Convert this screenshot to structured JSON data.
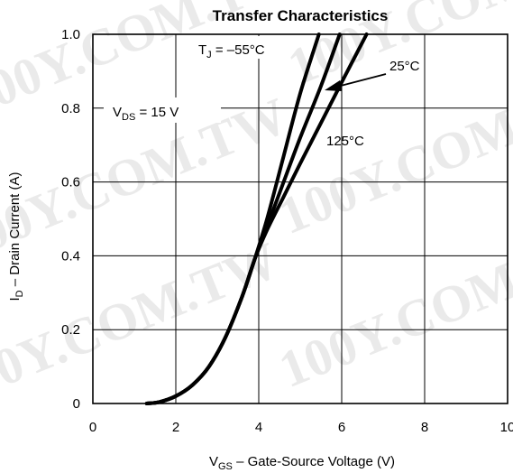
{
  "chart_data": {
    "type": "line",
    "title": "Transfer Characteristics",
    "xlabel": {
      "main": "V",
      "sub": "GS",
      "rest": " – Gate-Source Voltage (V)"
    },
    "ylabel": {
      "main": "I",
      "sub": "D",
      "rest": " – Drain Current (A)"
    },
    "xlim": [
      0,
      10
    ],
    "ylim": [
      0,
      1.0
    ],
    "x_ticks": [
      "0",
      "2",
      "4",
      "6",
      "8",
      "10"
    ],
    "y_ticks": [
      "0",
      "0.2",
      "0.4",
      "0.6",
      "0.8",
      "1.0"
    ],
    "grid": true,
    "annotations": {
      "vds": {
        "main": "V",
        "sub": "DS",
        "rest": "  = 15 V"
      },
      "tj": {
        "main": "T",
        "sub": "J",
        "rest": " = –55°C"
      },
      "t25": "25°C",
      "t125": "125°C"
    },
    "series": [
      {
        "name": "–55°C",
        "x": [
          1.3,
          1.6,
          2.0,
          2.4,
          2.8,
          3.2,
          3.6,
          3.9,
          4.2,
          4.6,
          5.0,
          5.45
        ],
        "y": [
          0.0,
          0.004,
          0.02,
          0.05,
          0.1,
          0.18,
          0.29,
          0.39,
          0.5,
          0.67,
          0.84,
          1.0
        ]
      },
      {
        "name": "25°C",
        "x": [
          1.3,
          1.6,
          2.0,
          2.4,
          2.8,
          3.2,
          3.6,
          3.9,
          4.2,
          4.6,
          5.0,
          5.5,
          5.95
        ],
        "y": [
          0.0,
          0.004,
          0.02,
          0.05,
          0.1,
          0.18,
          0.29,
          0.39,
          0.48,
          0.6,
          0.72,
          0.86,
          1.0
        ]
      },
      {
        "name": "125°C",
        "x": [
          1.3,
          1.6,
          2.0,
          2.4,
          2.8,
          3.2,
          3.6,
          3.9,
          4.2,
          4.6,
          5.0,
          5.5,
          6.0,
          6.6
        ],
        "y": [
          0.0,
          0.004,
          0.02,
          0.05,
          0.1,
          0.18,
          0.29,
          0.39,
          0.47,
          0.56,
          0.65,
          0.76,
          0.87,
          1.0
        ]
      }
    ]
  },
  "watermark": "100Y.COM.TW",
  "colors": {
    "curve": "#000000",
    "grid": "#000000",
    "watermark": "#d9d9d9"
  }
}
